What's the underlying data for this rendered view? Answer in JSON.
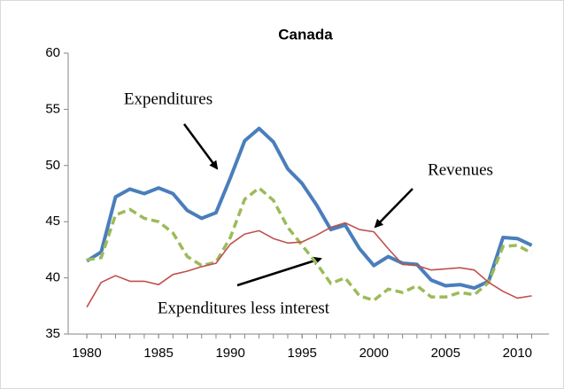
{
  "chart_data": {
    "type": "line",
    "title": "Canada",
    "x": [
      1980,
      1981,
      1982,
      1983,
      1984,
      1985,
      1986,
      1987,
      1988,
      1989,
      1990,
      1991,
      1992,
      1993,
      1994,
      1995,
      1996,
      1997,
      1998,
      1999,
      2000,
      2001,
      2002,
      2003,
      2004,
      2005,
      2006,
      2007,
      2008,
      2009,
      2010,
      2011
    ],
    "series": [
      {
        "name": "Expenditures",
        "color": "#4a7ebb",
        "values": [
          41.5,
          42.3,
          47.2,
          47.9,
          47.5,
          48.0,
          47.5,
          46.0,
          45.3,
          45.8,
          48.9,
          52.2,
          53.3,
          52.1,
          49.7,
          48.4,
          46.5,
          44.3,
          44.7,
          42.6,
          41.1,
          41.9,
          41.3,
          41.2,
          39.8,
          39.3,
          39.4,
          39.1,
          39.7,
          43.6,
          43.5,
          42.9
        ]
      },
      {
        "name": "Expenditures less interest",
        "color": "#9bbb59",
        "values": [
          41.6,
          41.8,
          45.6,
          46.1,
          45.3,
          45.0,
          44.0,
          41.9,
          41.1,
          41.4,
          43.6,
          47.0,
          48.0,
          46.9,
          44.5,
          42.9,
          41.3,
          39.5,
          40.0,
          38.4,
          38.0,
          39.0,
          38.7,
          39.3,
          38.3,
          38.3,
          38.7,
          38.5,
          39.6,
          42.8,
          42.9,
          42.2
        ]
      },
      {
        "name": "Revenues",
        "color": "#c0504d",
        "values": [
          37.4,
          39.6,
          40.2,
          39.7,
          39.7,
          39.4,
          40.3,
          40.6,
          41.0,
          41.3,
          43.0,
          43.9,
          44.2,
          43.5,
          43.1,
          43.2,
          43.8,
          44.5,
          44.9,
          44.3,
          44.1,
          42.6,
          41.2,
          41.1,
          40.7,
          40.8,
          40.9,
          40.7,
          39.6,
          38.8,
          38.2,
          38.4
        ]
      }
    ],
    "xlim": [
      1978.7,
      2012.2
    ],
    "xticks": [
      1980,
      1985,
      1990,
      1995,
      2000,
      2005,
      2010
    ],
    "ylim": [
      35,
      60
    ],
    "yticks": [
      35,
      40,
      45,
      50,
      55,
      60
    ],
    "grid": false
  }
}
